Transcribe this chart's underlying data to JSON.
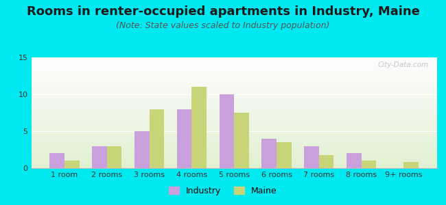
{
  "title": "Rooms in renter-occupied apartments in Industry, Maine",
  "subtitle": "(Note: State values scaled to Industry population)",
  "categories": [
    "1 room",
    "2 rooms",
    "3 rooms",
    "4 rooms",
    "5 rooms",
    "6 rooms",
    "7 rooms",
    "8 rooms",
    "9+ rooms"
  ],
  "industry_values": [
    2,
    3,
    5,
    8,
    10,
    4,
    3,
    2,
    0
  ],
  "maine_values": [
    1,
    3,
    8,
    11,
    7.5,
    3.5,
    1.8,
    1,
    0.8
  ],
  "industry_color": "#c9a0dc",
  "maine_color": "#c8d478",
  "background_color": "#00e8f0",
  "ylim": [
    0,
    15
  ],
  "yticks": [
    0,
    5,
    10,
    15
  ],
  "title_fontsize": 13,
  "subtitle_fontsize": 9,
  "tick_fontsize": 8,
  "legend_fontsize": 9,
  "bar_width": 0.35,
  "watermark": "City-Data.com"
}
